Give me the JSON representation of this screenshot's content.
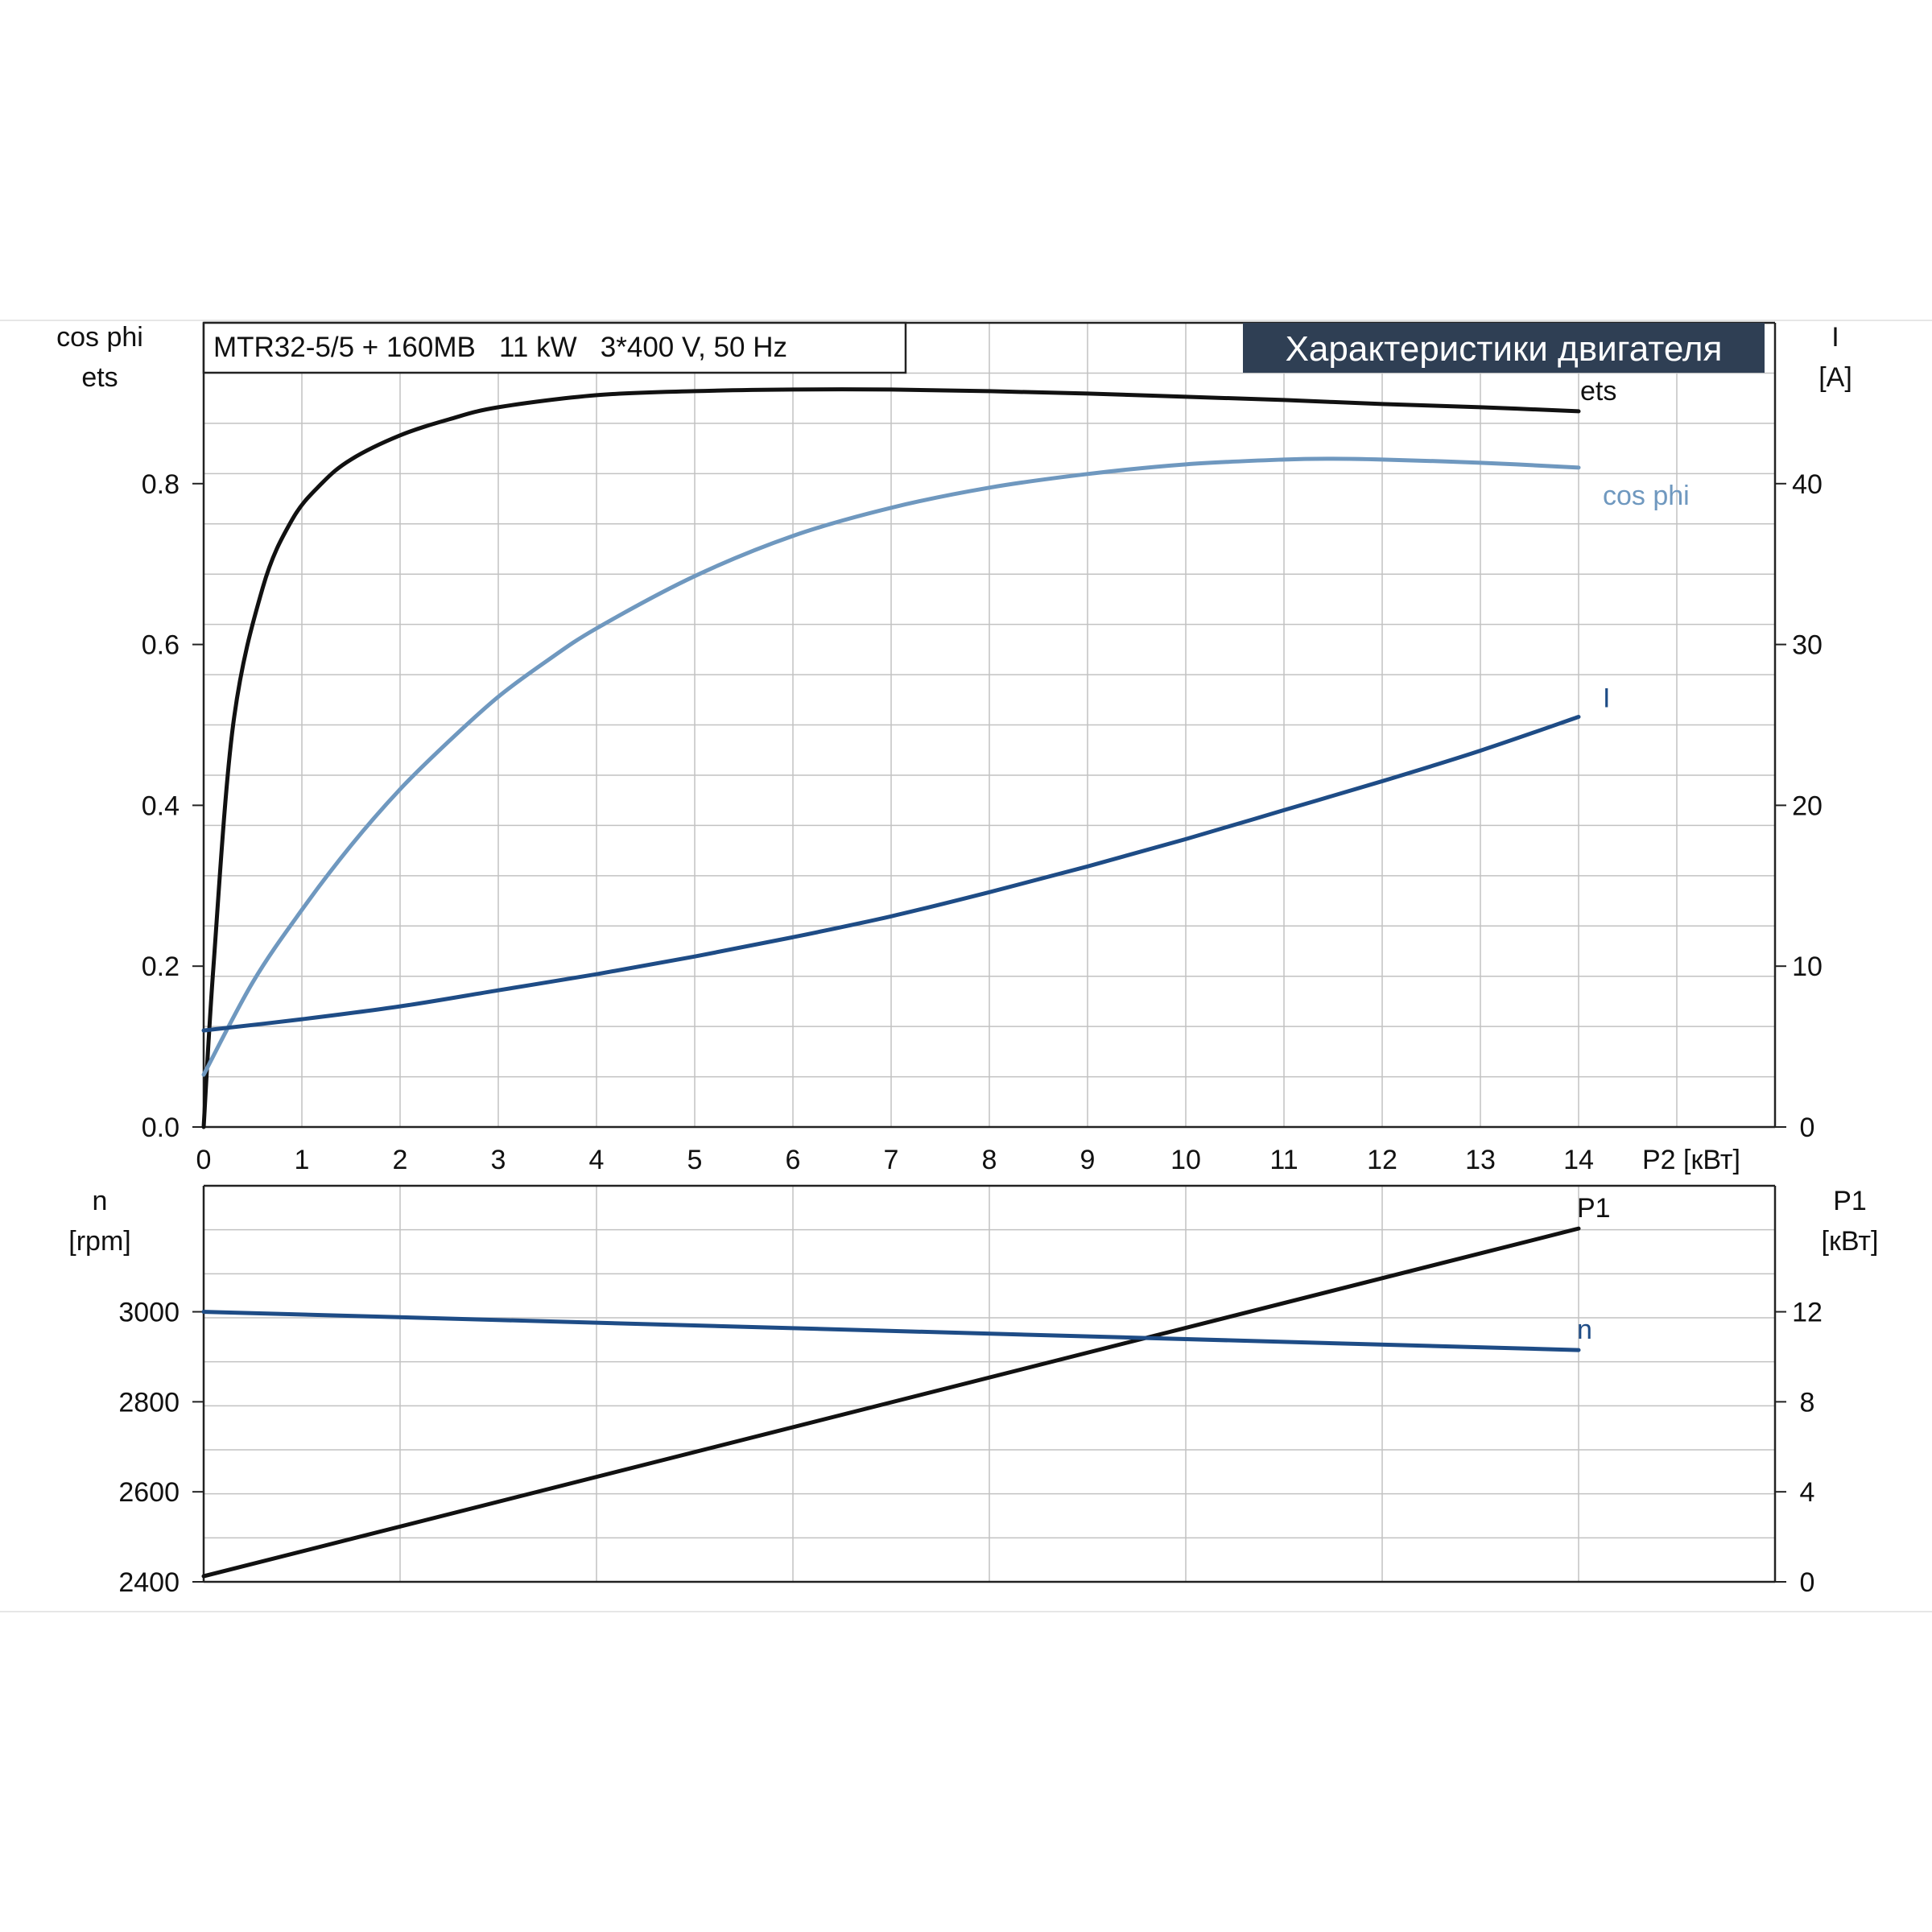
{
  "chart_data": [
    {
      "type": "line",
      "model_label": "MTR32-5/5 + 160MB   11 kW   3*400 V, 50 Hz",
      "title": "Характеристики двигателя",
      "x_label": "P2 [кВт]",
      "x_ticks": [
        "0",
        "1",
        "2",
        "3",
        "4",
        "5",
        "6",
        "7",
        "8",
        "9",
        "10",
        "11",
        "12",
        "13",
        "14"
      ],
      "xlim": [
        0,
        16
      ],
      "left_axis": {
        "label_line1": "cos phi",
        "label_line2": "ets",
        "ylim": [
          0,
          1.0
        ],
        "ticks": [
          {
            "value": 0.0,
            "label": "0.0"
          },
          {
            "value": 0.2,
            "label": "0.2"
          },
          {
            "value": 0.4,
            "label": "0.4"
          },
          {
            "value": 0.6,
            "label": "0.6"
          },
          {
            "value": 0.8,
            "label": "0.8"
          }
        ]
      },
      "right_axis": {
        "label_line1": "I",
        "label_line2": "[A]",
        "ylim": [
          0,
          50
        ],
        "ticks": [
          {
            "value": 0,
            "label": "0"
          },
          {
            "value": 10,
            "label": "10"
          },
          {
            "value": 20,
            "label": "20"
          },
          {
            "value": 30,
            "label": "30"
          },
          {
            "value": 40,
            "label": "40"
          }
        ]
      },
      "grid": true,
      "series": [
        {
          "name": "ets",
          "axis": "left",
          "color": "#111111",
          "x": [
            0,
            0.1,
            0.3,
            0.6,
            0.9,
            1.2,
            1.5,
            2,
            2.5,
            3,
            4,
            5,
            6,
            7,
            8,
            9,
            10,
            11,
            12,
            13,
            14
          ],
          "y": [
            0,
            0.2,
            0.5,
            0.67,
            0.755,
            0.8,
            0.83,
            0.86,
            0.88,
            0.895,
            0.91,
            0.915,
            0.917,
            0.917,
            0.915,
            0.912,
            0.908,
            0.904,
            0.899,
            0.895,
            0.89
          ]
        },
        {
          "name": "cos phi",
          "axis": "left",
          "color": "#6f98bf",
          "x": [
            0,
            0.5,
            1,
            1.5,
            2,
            2.5,
            3,
            3.5,
            4,
            5,
            6,
            7,
            8,
            9,
            10,
            11,
            11.5,
            12,
            13,
            14
          ],
          "y": [
            0.065,
            0.18,
            0.27,
            0.35,
            0.42,
            0.48,
            0.535,
            0.58,
            0.62,
            0.685,
            0.735,
            0.77,
            0.795,
            0.812,
            0.824,
            0.83,
            0.831,
            0.83,
            0.826,
            0.82
          ]
        },
        {
          "name": "I",
          "axis": "right",
          "color": "#1e4c86",
          "x": [
            0,
            1,
            2,
            3,
            4,
            5,
            6,
            7,
            8,
            9,
            10,
            11,
            12,
            13,
            14
          ],
          "y": [
            6,
            6.7,
            7.5,
            8.5,
            9.5,
            10.6,
            11.8,
            13.1,
            14.6,
            16.2,
            17.9,
            19.7,
            21.5,
            23.4,
            25.5
          ]
        }
      ]
    },
    {
      "type": "line",
      "x_ticks_hidden": true,
      "xlim": [
        0,
        16
      ],
      "left_axis": {
        "label_line1": "n",
        "label_line2": "[rpm]",
        "ylim": [
          2400,
          3280
        ],
        "ticks": [
          {
            "value": 2400,
            "label": "2400"
          },
          {
            "value": 2600,
            "label": "2600"
          },
          {
            "value": 2800,
            "label": "2800"
          },
          {
            "value": 3000,
            "label": "3000"
          }
        ]
      },
      "right_axis": {
        "label_line1": "P1",
        "label_line2": "[кВт]",
        "ylim": [
          0,
          17.6
        ],
        "ticks": [
          {
            "value": 0,
            "label": "0"
          },
          {
            "value": 4,
            "label": "4"
          },
          {
            "value": 8,
            "label": "8"
          },
          {
            "value": 12,
            "label": "12"
          }
        ]
      },
      "grid": true,
      "series": [
        {
          "name": "P1",
          "axis": "right",
          "color": "#111111",
          "x": [
            0,
            14
          ],
          "y": [
            0.25,
            15.7
          ]
        },
        {
          "name": "n",
          "axis": "left",
          "color": "#1e4c86",
          "x": [
            0,
            14
          ],
          "y": [
            3000,
            2915
          ]
        }
      ]
    }
  ]
}
